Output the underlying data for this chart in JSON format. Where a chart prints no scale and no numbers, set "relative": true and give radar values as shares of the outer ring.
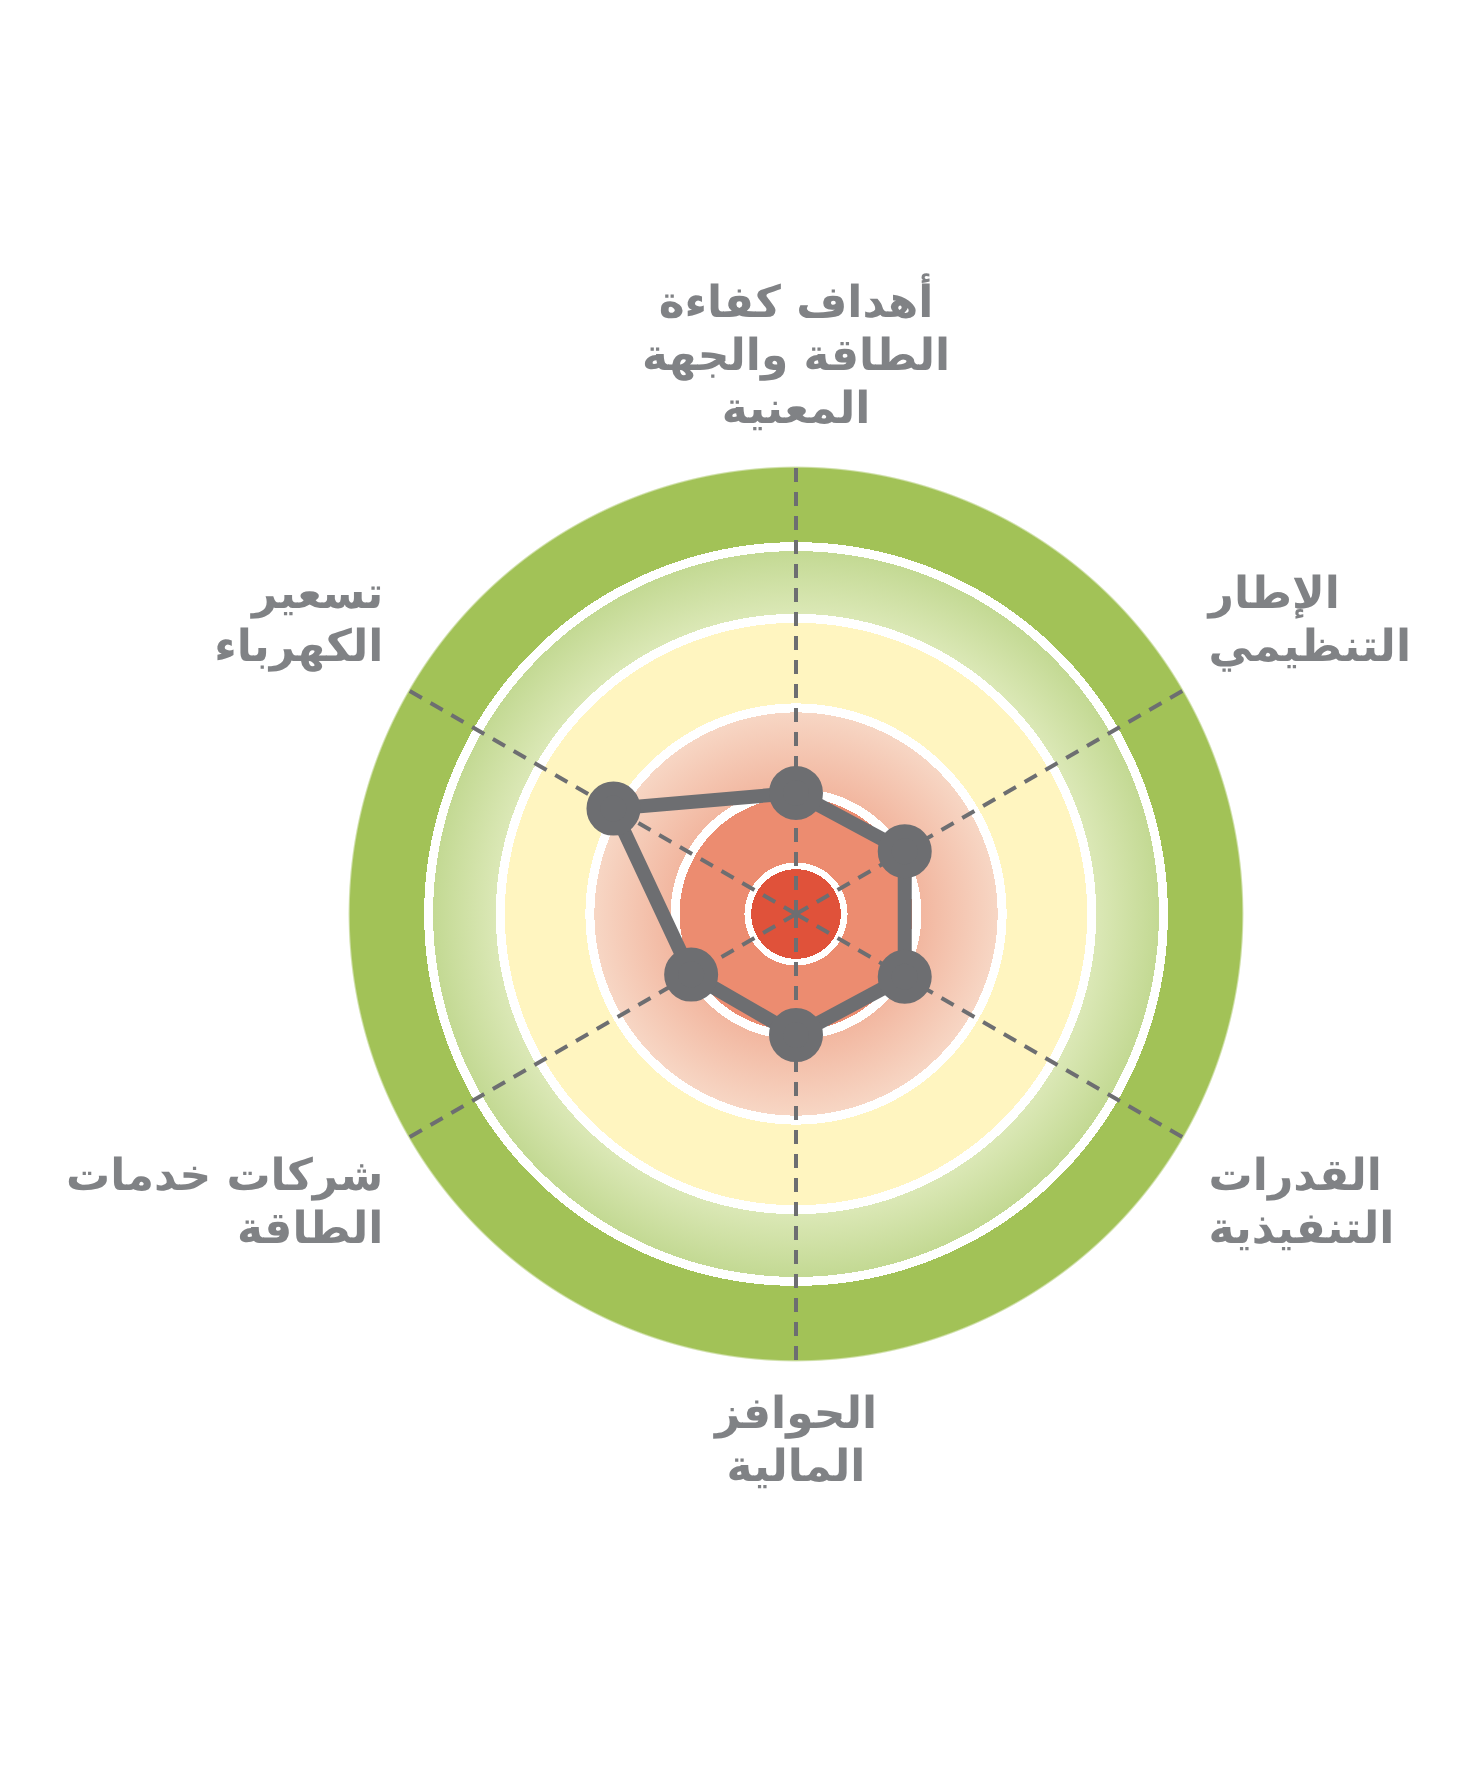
{
  "chart_data": {
    "type": "radar",
    "relative": true,
    "grid": true,
    "marker": "circle",
    "line_style": "solid",
    "categories": [
      "أهداف كفاءة الطاقة والجهة المعنية",
      "الإطار التنظيمي",
      "القدرات التنفيذية",
      "الحوافز المالية",
      "شركات خدمات الطاقة",
      "تسعير الكهرباء"
    ],
    "series": [
      {
        "color": "#6d6e71",
        "values": [
          0.27,
          0.28,
          0.28,
          0.27,
          0.27,
          0.47
        ]
      }
    ]
  }
}
